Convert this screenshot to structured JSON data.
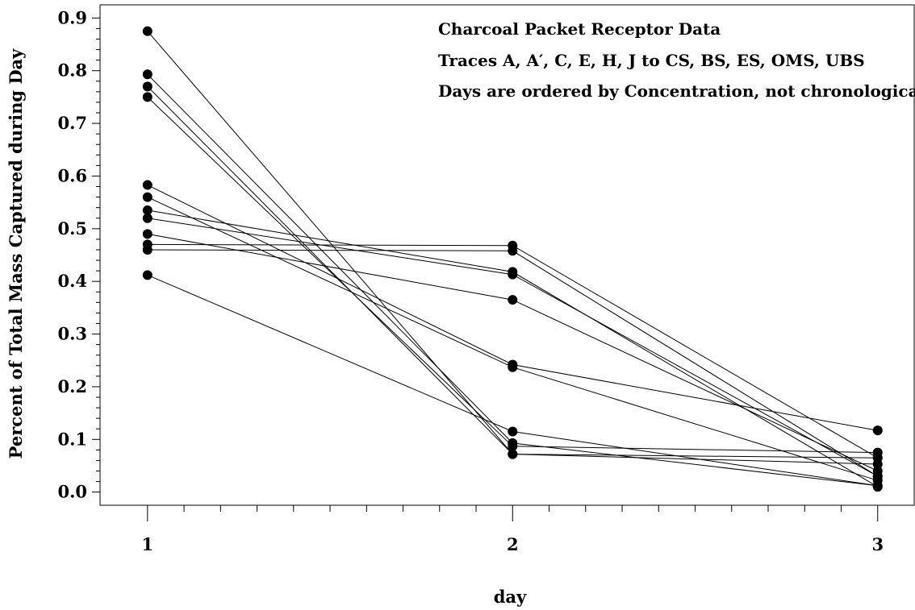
{
  "chart_data": {
    "type": "line",
    "title": "",
    "annotations": [
      "Charcoal Packet Receptor Data",
      "Traces A, A′, C, E, H, J to CS, BS, ES, OMS, UBS",
      "Days are ordered by Concentration, not chronologically"
    ],
    "xlabel": "day",
    "ylabel": "Percent of Total Mass Captured during Day",
    "x": [
      1,
      2,
      3
    ],
    "x_tick_labels": [
      "1",
      "2",
      "3"
    ],
    "xlim": [
      0.87,
      3.1
    ],
    "ylim": [
      -0.025,
      0.925
    ],
    "y_ticks": [
      0.0,
      0.1,
      0.2,
      0.3,
      0.4,
      0.5,
      0.6,
      0.7,
      0.8,
      0.9
    ],
    "y_tick_labels": [
      "0.0",
      "0.1",
      "0.2",
      "0.3",
      "0.4",
      "0.5",
      "0.6",
      "0.7",
      "0.8",
      "0.9"
    ],
    "grid": false,
    "legend": "none",
    "marker": "filled-circle",
    "line_color": "#000000",
    "series": [
      {
        "values": [
          0.875,
          0.072,
          0.053
        ]
      },
      {
        "values": [
          0.793,
          0.093,
          0.012
        ]
      },
      {
        "values": [
          0.77,
          0.072,
          0.065
        ]
      },
      {
        "values": [
          0.75,
          0.087,
          0.075
        ]
      },
      {
        "values": [
          0.583,
          0.242,
          0.117
        ]
      },
      {
        "values": [
          0.56,
          0.237,
          0.022
        ]
      },
      {
        "values": [
          0.535,
          0.418,
          0.01
        ]
      },
      {
        "values": [
          0.52,
          0.413,
          0.03
        ]
      },
      {
        "values": [
          0.49,
          0.365,
          0.04
        ]
      },
      {
        "values": [
          0.47,
          0.468,
          0.065
        ]
      },
      {
        "values": [
          0.46,
          0.458,
          0.03
        ]
      },
      {
        "values": [
          0.412,
          0.115,
          0.012
        ]
      }
    ]
  }
}
